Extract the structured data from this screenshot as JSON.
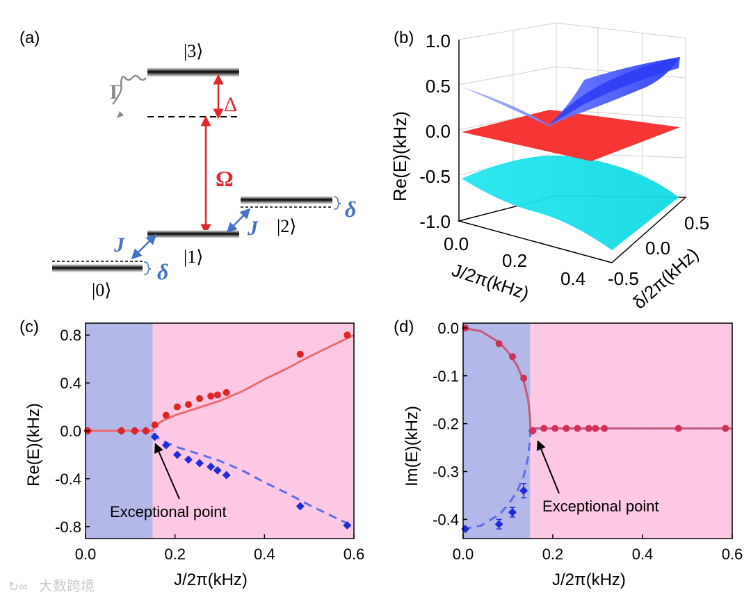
{
  "panels": {
    "a": "(a)",
    "b": "(b)",
    "c": "(c)",
    "d": "(d)"
  },
  "level_diagram": {
    "state3": "|3⟩",
    "state2": "|2⟩",
    "state1": "|1⟩",
    "state0": "|0⟩",
    "gamma": "Γ",
    "delta_cap": "Δ",
    "omega": "Ω",
    "coupling_J_left": "J",
    "coupling_J_right": "J",
    "detuning_right": "δ",
    "detuning_left": "δ",
    "colors": {
      "red": "#e3262b",
      "blue": "#4472c4",
      "gray": "#8a8a8a"
    }
  },
  "watermark": "大数跨境",
  "chart_data": [
    {
      "id": "b",
      "type": "surface3d",
      "zlabel": "Re(E)(kHz)",
      "xlabel": "J/2π(kHz)",
      "ylabel": "δ/2π(kHz)",
      "zlim": [
        -1.0,
        1.0
      ],
      "zticks": [
        "1.0",
        "0.5",
        "0.0",
        "-0.5",
        "-1.0"
      ],
      "xticks": [
        "0.0",
        "0.2",
        "0.4"
      ],
      "yticks": [
        "0.5",
        "0.0",
        "-0.5"
      ],
      "surfaces": [
        {
          "name": "upper",
          "color": "#2a3cf5",
          "z_corners": [
            0.5,
            0.9,
            0.95,
            0.6
          ]
        },
        {
          "name": "middle",
          "color": "#f52a2a",
          "z_corners": [
            0.0,
            0.0,
            0.0,
            0.0
          ]
        },
        {
          "name": "lower",
          "color": "#1de6ee",
          "z_corners": [
            -0.5,
            -0.9,
            -0.95,
            -0.6
          ]
        }
      ]
    },
    {
      "id": "c",
      "type": "line",
      "xlabel": "J/2π(kHz)",
      "ylabel": "Re(E)(kHz)",
      "xlim": [
        0.0,
        0.6
      ],
      "ylim": [
        -0.9,
        0.9
      ],
      "xticks": [
        0.0,
        0.2,
        0.4,
        0.6
      ],
      "xtick_labels": [
        "0.0",
        "0.2",
        "0.4",
        "0.6"
      ],
      "yticks": [
        -0.8,
        -0.4,
        0.0,
        0.4,
        0.8
      ],
      "ytick_labels": [
        "-0.8",
        "-0.4",
        "0.0",
        "0.4",
        "0.8"
      ],
      "exceptional_point_x": 0.15,
      "region_colors": {
        "pt_unbroken": "#b3b8e8",
        "pt_broken": "#fcc8e3"
      },
      "annotation": "Exceptional point",
      "theory_upper": {
        "color": "#f06a72",
        "x": [
          0.0,
          0.15,
          0.153,
          0.16,
          0.17,
          0.2,
          0.25,
          0.3,
          0.35,
          0.4,
          0.45,
          0.5,
          0.55,
          0.6
        ],
        "y": [
          0.0,
          0.0,
          0.03,
          0.055,
          0.08,
          0.13,
          0.19,
          0.25,
          0.33,
          0.43,
          0.52,
          0.62,
          0.71,
          0.8
        ]
      },
      "theory_lower": {
        "color": "#5c6fe6",
        "x": [
          0.0,
          0.15,
          0.153,
          0.16,
          0.17,
          0.2,
          0.25,
          0.3,
          0.35,
          0.4,
          0.45,
          0.5,
          0.55,
          0.6
        ],
        "y": [
          0.0,
          0.0,
          -0.03,
          -0.055,
          -0.08,
          -0.13,
          -0.19,
          -0.25,
          -0.33,
          -0.43,
          -0.52,
          -0.62,
          -0.71,
          -0.8
        ]
      },
      "measured_upper": {
        "color": "#e02424",
        "x": [
          0.005,
          0.08,
          0.11,
          0.135,
          0.155,
          0.18,
          0.205,
          0.23,
          0.255,
          0.28,
          0.295,
          0.315,
          0.48,
          0.585
        ],
        "y": [
          0.0,
          0.0,
          0.0,
          0.0,
          0.05,
          0.13,
          0.2,
          0.22,
          0.27,
          0.29,
          0.3,
          0.32,
          0.64,
          0.8
        ]
      },
      "measured_lower": {
        "color": "#1f2bd8",
        "x": [
          0.005,
          0.08,
          0.11,
          0.135,
          0.155,
          0.18,
          0.205,
          0.23,
          0.255,
          0.28,
          0.295,
          0.315,
          0.48,
          0.585
        ],
        "y": [
          0.0,
          0.0,
          0.0,
          0.0,
          -0.05,
          -0.12,
          -0.2,
          -0.24,
          -0.27,
          -0.3,
          -0.33,
          -0.37,
          -0.63,
          -0.79
        ]
      }
    },
    {
      "id": "d",
      "type": "line",
      "xlabel": "J/2π(kHz)",
      "ylabel": "Im(E)(kHz)",
      "xlim": [
        0.0,
        0.6
      ],
      "ylim": [
        -0.44,
        0.01
      ],
      "xticks": [
        0.0,
        0.2,
        0.4,
        0.6
      ],
      "xtick_labels": [
        "0.0",
        "0.2",
        "0.4",
        "0.6"
      ],
      "yticks": [
        0.0,
        -0.1,
        -0.2,
        -0.3,
        -0.4
      ],
      "ytick_labels": [
        "0.0",
        "-0.1",
        "-0.2",
        "-0.3",
        "-0.4"
      ],
      "exceptional_point_x": 0.15,
      "region_colors": {
        "pt_unbroken": "#b3b8e8",
        "pt_broken": "#fcc8e3"
      },
      "annotation": "Exceptional point",
      "theory_upper": {
        "color": "#c85a7a",
        "x": [
          0.0,
          0.04,
          0.08,
          0.1,
          0.12,
          0.135,
          0.145,
          0.149,
          0.15,
          0.6
        ],
        "y": [
          0.0,
          -0.007,
          -0.03,
          -0.05,
          -0.078,
          -0.11,
          -0.15,
          -0.185,
          -0.21,
          -0.21
        ]
      },
      "theory_lower": {
        "color": "#5c6fe6",
        "x": [
          0.0,
          0.04,
          0.08,
          0.1,
          0.12,
          0.135,
          0.145,
          0.149,
          0.15,
          0.6
        ],
        "y": [
          -0.42,
          -0.413,
          -0.39,
          -0.37,
          -0.342,
          -0.31,
          -0.27,
          -0.235,
          -0.21,
          -0.21
        ]
      },
      "measured_upper": {
        "color": "#d0305a",
        "x": [
          0.005,
          0.08,
          0.11,
          0.135,
          0.155,
          0.18,
          0.205,
          0.23,
          0.255,
          0.28,
          0.295,
          0.315,
          0.48,
          0.585
        ],
        "y": [
          0.0,
          -0.033,
          -0.06,
          -0.105,
          -0.215,
          -0.21,
          -0.21,
          -0.21,
          -0.21,
          -0.21,
          -0.21,
          -0.21,
          -0.21,
          -0.21
        ],
        "err": [
          0.005,
          0.005,
          0.005,
          0.005,
          0.005,
          0.005,
          0.005,
          0.005,
          0.005,
          0.005,
          0.005,
          0.005,
          0.005,
          0.005
        ]
      },
      "measured_lower": {
        "color": "#1f2bd8",
        "x": [
          0.005,
          0.08,
          0.11,
          0.135,
          0.155
        ],
        "y": [
          -0.42,
          -0.41,
          -0.385,
          -0.34,
          -0.215
        ],
        "err": [
          0.005,
          0.01,
          0.01,
          0.015,
          0.005
        ]
      }
    }
  ]
}
